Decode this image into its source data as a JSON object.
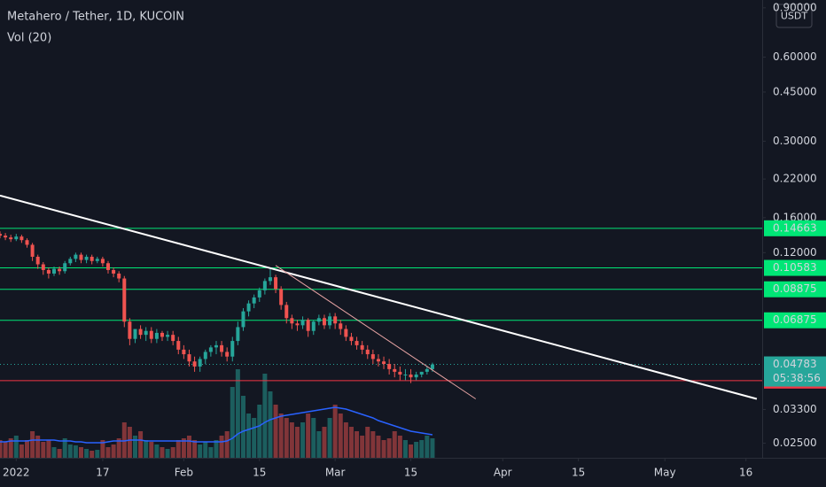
{
  "chart_data": {
    "type": "candlestick",
    "title": "Metahero / Tether, 1D, KUCOIN",
    "volume_title": "Vol (20)",
    "currency": "USDT",
    "log_scale": true,
    "grid": false,
    "xlim": [
      "2021-12-29",
      "2022-05-19"
    ],
    "xticks": [
      {
        "value": "2022-01-01",
        "label": "2022"
      },
      {
        "value": "2022-01-17",
        "label": "17"
      },
      {
        "value": "2022-02-01",
        "label": "Feb"
      },
      {
        "value": "2022-02-15",
        "label": "15"
      },
      {
        "value": "2022-03-01",
        "label": "Mar"
      },
      {
        "value": "2022-03-15",
        "label": "15"
      },
      {
        "value": "2022-04-01",
        "label": "Apr"
      },
      {
        "value": "2022-04-15",
        "label": "15"
      },
      {
        "value": "2022-05-01",
        "label": "May"
      },
      {
        "value": "2022-05-16",
        "label": "16"
      }
    ],
    "ylim": [
      0.0225,
      0.96
    ],
    "yticks": [
      {
        "value": 0.9,
        "label": "0.90000"
      },
      {
        "value": 0.6,
        "label": "0.60000"
      },
      {
        "value": 0.45,
        "label": "0.45000"
      },
      {
        "value": 0.3,
        "label": "0.30000"
      },
      {
        "value": 0.22,
        "label": "0.22000"
      },
      {
        "value": 0.16,
        "label": "0.16000"
      },
      {
        "value": 0.12,
        "label": "0.12000"
      },
      {
        "value": 0.033,
        "label": "0.03300"
      },
      {
        "value": 0.025,
        "label": "0.02500"
      }
    ],
    "up_color": "#26a69a",
    "down_color": "#ef5350",
    "volume_ma_color": "#2962ff",
    "x": [
      "2021-12-29",
      "2021-12-30",
      "2021-12-31",
      "2022-01-01",
      "2022-01-02",
      "2022-01-03",
      "2022-01-04",
      "2022-01-05",
      "2022-01-06",
      "2022-01-07",
      "2022-01-08",
      "2022-01-09",
      "2022-01-10",
      "2022-01-11",
      "2022-01-12",
      "2022-01-13",
      "2022-01-14",
      "2022-01-15",
      "2022-01-16",
      "2022-01-17",
      "2022-01-18",
      "2022-01-19",
      "2022-01-20",
      "2022-01-21",
      "2022-01-22",
      "2022-01-23",
      "2022-01-24",
      "2022-01-25",
      "2022-01-26",
      "2022-01-27",
      "2022-01-28",
      "2022-01-29",
      "2022-01-30",
      "2022-01-31",
      "2022-02-01",
      "2022-02-02",
      "2022-02-03",
      "2022-02-04",
      "2022-02-05",
      "2022-02-06",
      "2022-02-07",
      "2022-02-08",
      "2022-02-09",
      "2022-02-10",
      "2022-02-11",
      "2022-02-12",
      "2022-02-13",
      "2022-02-14",
      "2022-02-15",
      "2022-02-16",
      "2022-02-17",
      "2022-02-18",
      "2022-02-19",
      "2022-02-20",
      "2022-02-21",
      "2022-02-22",
      "2022-02-23",
      "2022-02-24",
      "2022-02-25",
      "2022-02-26",
      "2022-02-27",
      "2022-02-28",
      "2022-03-01",
      "2022-03-02",
      "2022-03-03",
      "2022-03-04",
      "2022-03-05",
      "2022-03-06",
      "2022-03-07",
      "2022-03-08",
      "2022-03-09",
      "2022-03-10",
      "2022-03-11",
      "2022-03-12",
      "2022-03-13",
      "2022-03-14",
      "2022-03-15",
      "2022-03-16",
      "2022-03-17",
      "2022-03-18",
      "2022-03-19"
    ],
    "open": [
      0.14,
      0.138,
      0.136,
      0.134,
      0.137,
      0.133,
      0.128,
      0.116,
      0.109,
      0.104,
      0.101,
      0.105,
      0.103,
      0.11,
      0.114,
      0.118,
      0.113,
      0.116,
      0.112,
      0.114,
      0.11,
      0.104,
      0.101,
      0.097,
      0.068,
      0.059,
      0.064,
      0.061,
      0.063,
      0.059,
      0.062,
      0.06,
      0.061,
      0.058,
      0.054,
      0.052,
      0.049,
      0.047,
      0.05,
      0.053,
      0.055,
      0.056,
      0.053,
      0.051,
      0.058,
      0.065,
      0.074,
      0.079,
      0.083,
      0.088,
      0.095,
      0.098,
      0.089,
      0.078,
      0.07,
      0.067,
      0.066,
      0.069,
      0.063,
      0.068,
      0.07,
      0.066,
      0.071,
      0.067,
      0.064,
      0.06,
      0.058,
      0.056,
      0.054,
      0.052,
      0.05,
      0.049,
      0.048,
      0.046,
      0.045,
      0.044,
      0.044,
      0.043,
      0.044,
      0.045,
      0.046
    ],
    "high": [
      0.143,
      0.141,
      0.139,
      0.14,
      0.139,
      0.135,
      0.13,
      0.118,
      0.111,
      0.106,
      0.107,
      0.107,
      0.112,
      0.116,
      0.12,
      0.12,
      0.118,
      0.118,
      0.116,
      0.116,
      0.112,
      0.106,
      0.103,
      0.099,
      0.07,
      0.061,
      0.066,
      0.065,
      0.065,
      0.064,
      0.063,
      0.063,
      0.063,
      0.06,
      0.056,
      0.054,
      0.051,
      0.051,
      0.054,
      0.056,
      0.058,
      0.058,
      0.055,
      0.06,
      0.068,
      0.076,
      0.081,
      0.085,
      0.09,
      0.097,
      0.106,
      0.1,
      0.091,
      0.08,
      0.072,
      0.069,
      0.071,
      0.07,
      0.069,
      0.072,
      0.072,
      0.073,
      0.073,
      0.069,
      0.066,
      0.062,
      0.06,
      0.058,
      0.056,
      0.054,
      0.052,
      0.051,
      0.05,
      0.048,
      0.047,
      0.046,
      0.046,
      0.045,
      0.045,
      0.047,
      0.0485
    ],
    "low": [
      0.135,
      0.133,
      0.131,
      0.132,
      0.13,
      0.125,
      0.112,
      0.105,
      0.1,
      0.097,
      0.099,
      0.1,
      0.101,
      0.108,
      0.111,
      0.11,
      0.11,
      0.109,
      0.11,
      0.107,
      0.101,
      0.098,
      0.094,
      0.065,
      0.056,
      0.057,
      0.059,
      0.058,
      0.057,
      0.057,
      0.058,
      0.058,
      0.056,
      0.052,
      0.05,
      0.047,
      0.045,
      0.045,
      0.048,
      0.051,
      0.052,
      0.051,
      0.049,
      0.049,
      0.056,
      0.063,
      0.071,
      0.076,
      0.08,
      0.085,
      0.092,
      0.086,
      0.075,
      0.067,
      0.064,
      0.063,
      0.064,
      0.06,
      0.061,
      0.066,
      0.064,
      0.064,
      0.064,
      0.061,
      0.058,
      0.056,
      0.054,
      0.052,
      0.05,
      0.048,
      0.047,
      0.046,
      0.044,
      0.043,
      0.042,
      0.042,
      0.041,
      0.042,
      0.043,
      0.044,
      0.045
    ],
    "close": [
      0.138,
      0.136,
      0.134,
      0.137,
      0.133,
      0.128,
      0.116,
      0.109,
      0.104,
      0.101,
      0.105,
      0.103,
      0.11,
      0.114,
      0.118,
      0.113,
      0.116,
      0.112,
      0.114,
      0.11,
      0.104,
      0.101,
      0.097,
      0.068,
      0.059,
      0.064,
      0.061,
      0.063,
      0.059,
      0.062,
      0.06,
      0.061,
      0.058,
      0.054,
      0.052,
      0.049,
      0.047,
      0.05,
      0.053,
      0.055,
      0.056,
      0.053,
      0.051,
      0.058,
      0.065,
      0.074,
      0.079,
      0.083,
      0.088,
      0.095,
      0.098,
      0.089,
      0.078,
      0.07,
      0.067,
      0.066,
      0.069,
      0.063,
      0.068,
      0.07,
      0.066,
      0.071,
      0.067,
      0.064,
      0.06,
      0.058,
      0.056,
      0.054,
      0.052,
      0.05,
      0.049,
      0.048,
      0.046,
      0.045,
      0.044,
      0.044,
      0.043,
      0.044,
      0.045,
      0.046,
      0.0478
    ],
    "volume": [
      20,
      18,
      22,
      25,
      15,
      20,
      30,
      25,
      18,
      20,
      12,
      10,
      22,
      15,
      14,
      12,
      10,
      8,
      9,
      20,
      12,
      15,
      22,
      40,
      35,
      25,
      30,
      20,
      18,
      15,
      12,
      10,
      12,
      20,
      22,
      25,
      20,
      15,
      18,
      12,
      20,
      25,
      30,
      80,
      100,
      70,
      50,
      45,
      60,
      95,
      75,
      60,
      50,
      45,
      40,
      35,
      40,
      50,
      45,
      30,
      35,
      45,
      60,
      50,
      40,
      35,
      30,
      25,
      35,
      30,
      25,
      20,
      22,
      30,
      25,
      20,
      15,
      18,
      20,
      25,
      22
    ],
    "volume_ma": [
      18,
      18,
      19,
      19,
      19,
      19,
      20,
      20,
      20,
      20,
      20,
      19,
      19,
      19,
      18,
      18,
      17,
      17,
      17,
      17,
      18,
      19,
      19,
      19,
      20,
      20,
      20,
      19,
      19,
      19,
      19,
      19,
      19,
      19,
      19,
      19,
      18,
      18,
      18,
      18,
      18,
      18,
      19,
      22,
      27,
      30,
      32,
      34,
      36,
      40,
      43,
      45,
      47,
      48,
      49,
      50,
      51,
      52,
      53,
      54,
      55,
      56,
      57,
      56,
      55,
      53,
      51,
      49,
      47,
      45,
      42,
      40,
      38,
      36,
      34,
      32,
      30,
      29,
      28,
      27,
      26
    ],
    "levels": [
      {
        "value": 0.14663,
        "color": "#00e676"
      },
      {
        "value": 0.10583,
        "color": "#00e676"
      },
      {
        "value": 0.08875,
        "color": "#00e676"
      },
      {
        "value": 0.06875,
        "color": "#00e676"
      },
      {
        "value": 0.04185,
        "color": "#f23645"
      }
    ],
    "last_price": 0.04783,
    "countdown": "05:38:56",
    "trendlines": [
      {
        "x": [
          "2021-12-29",
          "2022-05-18"
        ],
        "y": [
          0.192,
          0.036
        ],
        "color": "#ffffff"
      },
      {
        "x": [
          "2022-02-18",
          "2022-03-27"
        ],
        "y": [
          0.108,
          0.036
        ],
        "color": "#e8a4a4"
      }
    ]
  }
}
